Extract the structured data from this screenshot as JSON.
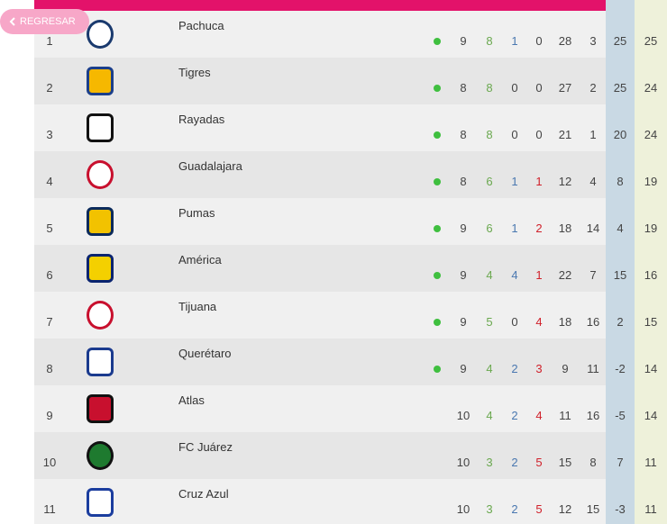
{
  "back_button": {
    "label": "REGRESAR"
  },
  "table": {
    "rows": [
      {
        "pos": 1,
        "team": "Pachuca",
        "qualified": true,
        "jj": 9,
        "jg": 8,
        "je": 1,
        "jp": 0,
        "gf": 28,
        "gc": 3,
        "dif": 25,
        "pts": 25
      },
      {
        "pos": 2,
        "team": "Tigres",
        "qualified": true,
        "jj": 8,
        "jg": 8,
        "je": 0,
        "jp": 0,
        "gf": 27,
        "gc": 2,
        "dif": 25,
        "pts": 24
      },
      {
        "pos": 3,
        "team": "Rayadas",
        "qualified": true,
        "jj": 8,
        "jg": 8,
        "je": 0,
        "jp": 0,
        "gf": 21,
        "gc": 1,
        "dif": 20,
        "pts": 24
      },
      {
        "pos": 4,
        "team": "Guadalajara",
        "qualified": true,
        "jj": 8,
        "jg": 6,
        "je": 1,
        "jp": 1,
        "gf": 12,
        "gc": 4,
        "dif": 8,
        "pts": 19
      },
      {
        "pos": 5,
        "team": "Pumas",
        "qualified": true,
        "jj": 9,
        "jg": 6,
        "je": 1,
        "jp": 2,
        "gf": 18,
        "gc": 14,
        "dif": 4,
        "pts": 19
      },
      {
        "pos": 6,
        "team": "América",
        "qualified": true,
        "jj": 9,
        "jg": 4,
        "je": 4,
        "jp": 1,
        "gf": 22,
        "gc": 7,
        "dif": 15,
        "pts": 16
      },
      {
        "pos": 7,
        "team": "Tijuana",
        "qualified": true,
        "jj": 9,
        "jg": 5,
        "je": 0,
        "jp": 4,
        "gf": 18,
        "gc": 16,
        "dif": 2,
        "pts": 15
      },
      {
        "pos": 8,
        "team": "Querétaro",
        "qualified": true,
        "jj": 9,
        "jg": 4,
        "je": 2,
        "jp": 3,
        "gf": 9,
        "gc": 11,
        "dif": -2,
        "pts": 14
      },
      {
        "pos": 9,
        "team": "Atlas",
        "qualified": false,
        "jj": 10,
        "jg": 4,
        "je": 2,
        "jp": 4,
        "gf": 11,
        "gc": 16,
        "dif": -5,
        "pts": 14
      },
      {
        "pos": 10,
        "team": "FC Juárez",
        "qualified": false,
        "jj": 10,
        "jg": 3,
        "je": 2,
        "jp": 5,
        "gf": 15,
        "gc": 8,
        "dif": 7,
        "pts": 11
      },
      {
        "pos": 11,
        "team": "Cruz Azul",
        "qualified": false,
        "jj": 10,
        "jg": 3,
        "je": 2,
        "jp": 5,
        "gf": 12,
        "gc": 15,
        "dif": -3,
        "pts": 11
      }
    ]
  }
}
